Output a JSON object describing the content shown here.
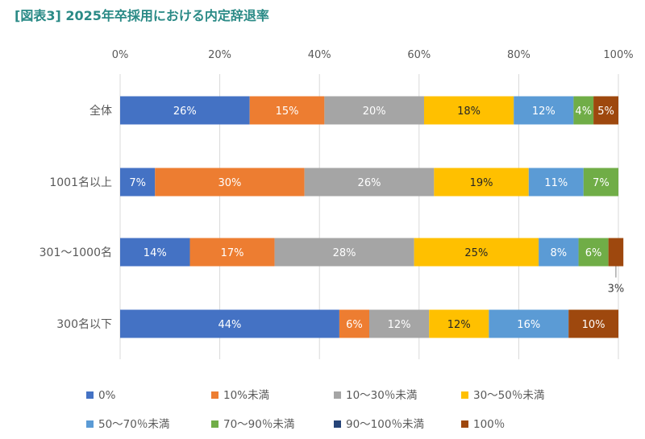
{
  "title": "[図表3] 2025年卒採用における内定辞退率",
  "chart_data": {
    "type": "bar",
    "orientation": "horizontal",
    "stacked": true,
    "title": "[図表3] 2025年卒採用における内定辞退率",
    "xlim": [
      0,
      100
    ],
    "x_ticks": [
      "0%",
      "20%",
      "40%",
      "60%",
      "80%",
      "100%"
    ],
    "x_tick_values": [
      0,
      20,
      40,
      60,
      80,
      100
    ],
    "grid": true,
    "legend_position": "bottom",
    "categories": [
      "全体",
      "1001名以上",
      "301～1000名",
      "300名以下"
    ],
    "series": [
      {
        "name": "0%",
        "color": "#4472C4",
        "label_color": "#ffffff",
        "values": [
          26,
          7,
          14,
          44
        ],
        "labels": [
          "26%",
          "7%",
          "14%",
          "44%"
        ]
      },
      {
        "name": "10%未満",
        "color": "#ED7D31",
        "label_color": "#ffffff",
        "values": [
          15,
          30,
          17,
          6
        ],
        "labels": [
          "15%",
          "30%",
          "17%",
          "6%"
        ]
      },
      {
        "name": "10～30％未満",
        "color": "#A5A5A5",
        "label_color": "#ffffff",
        "values": [
          20,
          26,
          28,
          12
        ],
        "labels": [
          "20%",
          "26%",
          "28%",
          "12%"
        ]
      },
      {
        "name": "30～50％未満",
        "color": "#FFC000",
        "label_color": "#262626",
        "values": [
          18,
          19,
          25,
          12
        ],
        "labels": [
          "18%",
          "19%",
          "25%",
          "12%"
        ]
      },
      {
        "name": "50～70％未満",
        "color": "#5B9BD5",
        "label_color": "#ffffff",
        "values": [
          12,
          11,
          8,
          16
        ],
        "labels": [
          "12%",
          "11%",
          "8%",
          "16%"
        ]
      },
      {
        "name": "70～90％未満",
        "color": "#70AD47",
        "label_color": "#ffffff",
        "values": [
          4,
          7,
          6,
          0
        ],
        "labels": [
          "4%",
          "7%",
          "6%",
          ""
        ]
      },
      {
        "name": "90～100％未満",
        "color": "#264478",
        "label_color": "#ffffff",
        "values": [
          0,
          0,
          0,
          0
        ],
        "labels": [
          "",
          "",
          "",
          ""
        ]
      },
      {
        "name": "100％",
        "color": "#9E480E",
        "label_color": "#ffffff",
        "values": [
          5,
          0,
          3,
          10
        ],
        "labels": [
          "5%",
          "",
          "",
          "10%"
        ]
      }
    ],
    "annotations": [
      {
        "category": "301～1000名",
        "series": "100％",
        "text": "3%",
        "style": "callout-below"
      }
    ]
  }
}
